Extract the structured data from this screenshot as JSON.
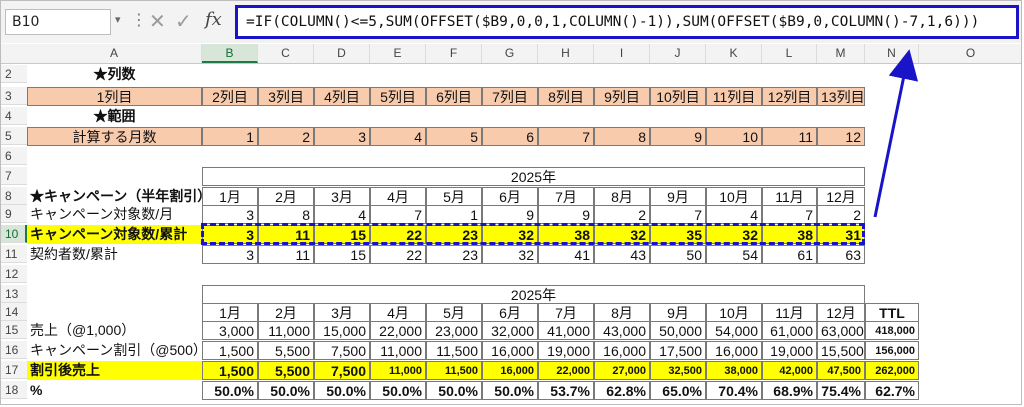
{
  "formula_bar": {
    "name_box": "B10",
    "fx": "fx",
    "formula": "=IF(COLUMN()<=5,SUM(OFFSET($B9,0,0,1,COLUMN()-1)),SUM(OFFSET($B9,0,COLUMN()-7,1,6)))"
  },
  "columns": [
    "A",
    "B",
    "C",
    "D",
    "E",
    "F",
    "G",
    "H",
    "I",
    "J",
    "K",
    "L",
    "M",
    "N",
    "O"
  ],
  "rows": [
    "2",
    "3",
    "4",
    "5",
    "6",
    "7",
    "8",
    "9",
    "10",
    "11",
    "12",
    "13",
    "14",
    "15",
    "16",
    "17",
    "18"
  ],
  "section1": {
    "title_cols": "★列数",
    "col_row_label": "1列目",
    "col_labels": [
      "2列目",
      "3列目",
      "4列目",
      "5列目",
      "6列目",
      "7列目",
      "8列目",
      "9列目",
      "10列目",
      "11列目",
      "12列目",
      "13列目"
    ],
    "title_range": "★範囲",
    "range_label": "計算する月数",
    "range_values": [
      "1",
      "2",
      "3",
      "4",
      "5",
      "6",
      "7",
      "8",
      "9",
      "10",
      "11",
      "12"
    ]
  },
  "section2": {
    "year": "2025年",
    "title": "★キャンペーン（半年割引）",
    "months": [
      "1月",
      "2月",
      "3月",
      "4月",
      "5月",
      "6月",
      "7月",
      "8月",
      "9月",
      "10月",
      "11月",
      "12月"
    ],
    "row9_label": "キャンペーン対象数/月",
    "row9": [
      "3",
      "8",
      "4",
      "7",
      "1",
      "9",
      "9",
      "2",
      "7",
      "4",
      "7",
      "2"
    ],
    "row10_label": "キャンペーン対象数/累計",
    "row10": [
      "3",
      "11",
      "15",
      "22",
      "23",
      "32",
      "38",
      "32",
      "35",
      "32",
      "38",
      "31"
    ],
    "row11_label": "契約者数/累計",
    "row11": [
      "3",
      "11",
      "15",
      "22",
      "23",
      "32",
      "41",
      "43",
      "50",
      "54",
      "61",
      "63"
    ]
  },
  "section3": {
    "year": "2025年",
    "months": [
      "1月",
      "2月",
      "3月",
      "4月",
      "5月",
      "6月",
      "7月",
      "8月",
      "9月",
      "10月",
      "11月",
      "12月"
    ],
    "ttl": "TTL",
    "row15_label": "売上（@1,000）",
    "row15": [
      "3,000",
      "11,000",
      "15,000",
      "22,000",
      "23,000",
      "32,000",
      "41,000",
      "43,000",
      "50,000",
      "54,000",
      "61,000",
      "63,000"
    ],
    "row15_ttl": "418,000",
    "row16_label": "キャンペーン割引（@500）",
    "row16": [
      "1,500",
      "5,500",
      "7,500",
      "11,000",
      "11,500",
      "16,000",
      "19,000",
      "16,000",
      "17,500",
      "16,000",
      "19,000",
      "15,500"
    ],
    "row16_ttl": "156,000",
    "row17_label": "割引後売上",
    "row17": [
      "1,500",
      "5,500",
      "7,500",
      "11,000",
      "11,500",
      "16,000",
      "22,000",
      "27,000",
      "32,500",
      "38,000",
      "42,000",
      "47,500"
    ],
    "row17_ttl": "262,000",
    "row18_label": "%",
    "row18": [
      "50.0%",
      "50.0%",
      "50.0%",
      "50.0%",
      "50.0%",
      "50.0%",
      "53.7%",
      "62.8%",
      "65.0%",
      "70.4%",
      "68.9%",
      "75.4%"
    ],
    "row18_ttl": "62.7%"
  }
}
